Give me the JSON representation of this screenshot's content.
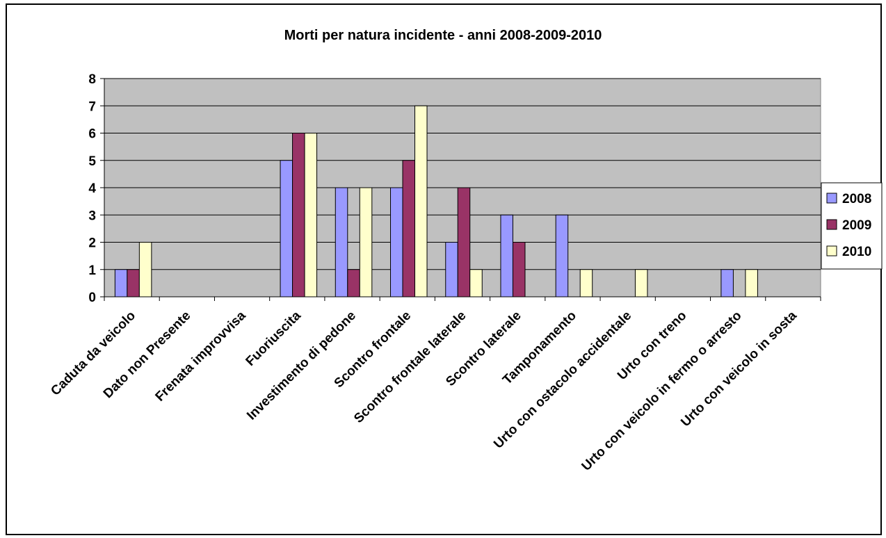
{
  "chart_data": {
    "type": "bar",
    "title": "Morti per natura incidente - anni 2008-2009-2010",
    "xlabel": "",
    "ylabel": "",
    "ylim": [
      0,
      8
    ],
    "yticks": [
      "0",
      "1",
      "2",
      "3",
      "4",
      "5",
      "6",
      "7",
      "8"
    ],
    "grid": true,
    "legend_position": "right",
    "plot_background": "#c0c0c0",
    "categories": [
      "Caduta da veicolo",
      "Dato non Presente",
      "Frenata improvvisa",
      "Fuoriuscita",
      "Investimento di pedone",
      "Scontro frontale",
      "Scontro frontale laterale",
      "Scontro laterale",
      "Tamponamento",
      "Urto con ostacolo accidentale",
      "Urto con treno",
      "Urto con veicolo in fermo o arresto",
      "Urto con veicolo in sosta"
    ],
    "series": [
      {
        "name": "2008",
        "color": "#9999ff",
        "values": [
          1,
          0,
          0,
          5,
          4,
          4,
          2,
          3,
          3,
          0,
          0,
          1,
          0
        ]
      },
      {
        "name": "2009",
        "color": "#993366",
        "values": [
          1,
          0,
          0,
          6,
          1,
          5,
          4,
          2,
          0,
          0,
          0,
          0,
          0
        ]
      },
      {
        "name": "2010",
        "color": "#ffffcc",
        "values": [
          2,
          0,
          0,
          6,
          4,
          7,
          1,
          0,
          1,
          1,
          0,
          1,
          0
        ]
      }
    ]
  }
}
